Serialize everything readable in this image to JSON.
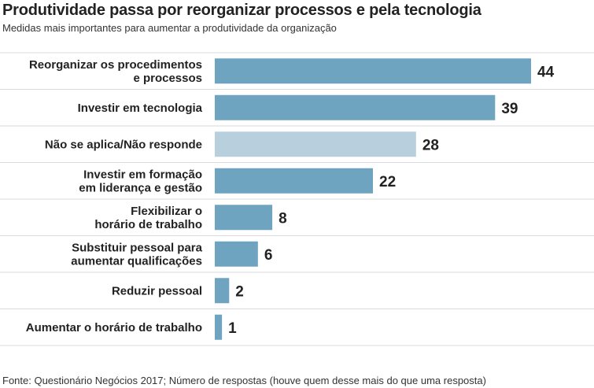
{
  "chart_data": {
    "type": "bar",
    "orientation": "horizontal",
    "title": "Produtividade passa por reorganizar processos e pela tecnologia",
    "subtitle": "Medidas mais importantes para aumentar a produtividade da organização",
    "categories": [
      [
        "Reorganizar os procedimentos",
        "e processos"
      ],
      [
        "Investir em tecnologia"
      ],
      [
        "Não se aplica/Não responde"
      ],
      [
        "Investir em formação",
        "em liderança e gestão"
      ],
      [
        "Flexibilizar o",
        "horário de trabalho"
      ],
      [
        "Substituir pessoal para",
        "aumentar qualificações"
      ],
      [
        "Reduzir pessoal"
      ],
      [
        "Aumentar o horário de trabalho"
      ]
    ],
    "values": [
      44,
      39,
      28,
      22,
      8,
      6,
      2,
      1
    ],
    "value_labels": [
      "44",
      "39",
      "28",
      "22",
      "8",
      "6",
      "2",
      "1"
    ],
    "highlighted": [
      false,
      false,
      true,
      false,
      false,
      false,
      false,
      false
    ],
    "xlim": [
      0,
      44
    ],
    "grid": false,
    "legend": "none",
    "colors": {
      "bar": "#6ea4c0",
      "bar_muted": "#b8d0dd",
      "divider": "#d9d9d9"
    },
    "source": "Fonte: Questionário Negócios 2017; Número de respostas (houve quem desse mais do que uma resposta)"
  }
}
